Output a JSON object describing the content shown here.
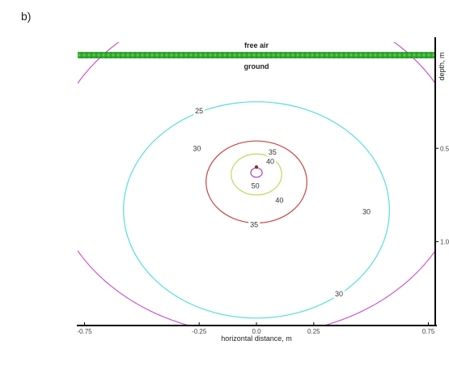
{
  "panel_label": "b)",
  "chart_data": {
    "type": "contour",
    "xlabel": "horizontal  distance, m",
    "ylabel": "depth, m",
    "xlim": [
      -0.78,
      0.78
    ],
    "ylim": [
      1.45,
      -0.07
    ],
    "x_ticks": [
      {
        "value": -0.75,
        "label": "-0.75"
      },
      {
        "value": -0.25,
        "label": "-0.25"
      },
      {
        "value": 0.0,
        "label": "0.0"
      },
      {
        "value": 0.25,
        "label": "0.25"
      },
      {
        "value": 0.75,
        "label": "0.75"
      }
    ],
    "y_ticks": [
      {
        "value": 0.5,
        "label": "0.5"
      },
      {
        "value": 1.0,
        "label": "1.0"
      }
    ],
    "region_labels": {
      "above": "free air",
      "below": "ground"
    },
    "surface_color": "#33aa33",
    "source": {
      "x": 0.0,
      "depth": 0.6
    },
    "contours": [
      {
        "level": "25",
        "color": "#cc55cc",
        "cx": 0.0,
        "cy": 0.6,
        "r": 0.9,
        "labels": [
          {
            "text": "25",
            "x": -0.25,
            "y": 0.3
          }
        ]
      },
      {
        "level": "30",
        "color": "#55dddd",
        "cx": 0.0,
        "cy": 0.83,
        "r": 0.58,
        "labels": [
          {
            "text": "30",
            "x": -0.26,
            "y": 0.5
          },
          {
            "text": "30",
            "x": 0.48,
            "y": 0.84
          },
          {
            "text": "30",
            "x": 0.36,
            "y": 1.28
          }
        ]
      },
      {
        "level": "35",
        "color": "#cc4444",
        "cx": 0.0,
        "cy": 0.68,
        "r": 0.22,
        "labels": [
          {
            "text": "35",
            "x": 0.07,
            "y": 0.52
          },
          {
            "text": "35",
            "x": -0.01,
            "y": 0.91
          }
        ]
      },
      {
        "level": "40",
        "color": "#bbdd55",
        "cx": 0.0,
        "cy": 0.64,
        "r": 0.11,
        "labels": [
          {
            "text": "40",
            "x": 0.06,
            "y": 0.57
          },
          {
            "text": "40",
            "x": 0.1,
            "y": 0.78
          }
        ]
      },
      {
        "level": "50",
        "color": "#aa44aa",
        "cx": 0.0,
        "cy": 0.63,
        "r": 0.025,
        "labels": [
          {
            "text": "50",
            "x": -0.005,
            "y": 0.7
          }
        ]
      }
    ]
  }
}
